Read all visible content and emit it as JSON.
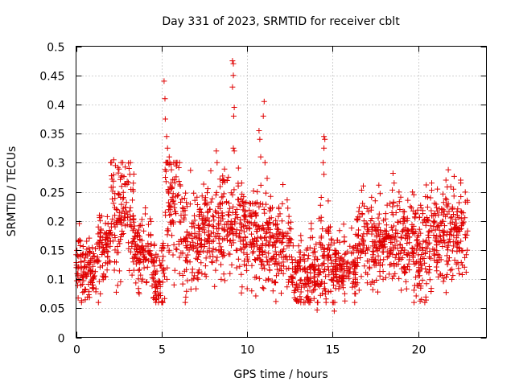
{
  "chart_data": {
    "type": "scatter",
    "title": "Day 331 of 2023, SRMTID for receiver cblt",
    "xlabel": "GPS time / hours",
    "ylabel": "SRMTID / TECUs",
    "xlim": [
      0,
      24
    ],
    "ylim": [
      0,
      0.5
    ],
    "xticks": [
      0,
      5,
      10,
      15,
      20
    ],
    "xtick_labels": [
      "0",
      "5",
      "10",
      "15",
      "20"
    ],
    "yticks": [
      0,
      0.05,
      0.1,
      0.15,
      0.2,
      0.25,
      0.3,
      0.35,
      0.4,
      0.45,
      0.5
    ],
    "ytick_labels": [
      "0",
      "0.05",
      "0.1",
      "0.15",
      "0.2",
      "0.25",
      "0.3",
      "0.35",
      "0.4",
      "0.45",
      "0.5"
    ],
    "grid": true,
    "marker": "+",
    "color": "#e00000",
    "series": [
      {
        "name": "cblt",
        "data_summary": "Dense per-satellite scatter from about 0 to 23 hours; most values between 0.05 and 0.3 TECU with spikes near 5.2 h, 9.2 h, 11 h and 14.6 h.",
        "segments": [
          {
            "x_range": [
              0.0,
              0.5
            ],
            "center": 0.12,
            "spread": 0.04
          },
          {
            "x_range": [
              0.5,
              1.2
            ],
            "center": 0.12,
            "spread": 0.04
          },
          {
            "x_range": [
              1.2,
              2.0
            ],
            "center": 0.15,
            "spread": 0.04
          },
          {
            "x_range": [
              2.0,
              2.6
            ],
            "center": 0.22,
            "spread": 0.08
          },
          {
            "x_range": [
              2.6,
              3.4
            ],
            "center": 0.22,
            "spread": 0.07
          },
          {
            "x_range": [
              3.4,
              4.4
            ],
            "center": 0.15,
            "spread": 0.04
          },
          {
            "x_range": [
              4.4,
              5.2
            ],
            "center": 0.11,
            "spread": 0.04
          },
          {
            "x_range": [
              5.2,
              6.2
            ],
            "center": 0.22,
            "spread": 0.09
          },
          {
            "x_range": [
              6.2,
              7.2
            ],
            "center": 0.16,
            "spread": 0.06
          },
          {
            "x_range": [
              7.2,
              8.2
            ],
            "center": 0.18,
            "spread": 0.05
          },
          {
            "x_range": [
              8.2,
              9.0
            ],
            "center": 0.2,
            "spread": 0.06
          },
          {
            "x_range": [
              9.0,
              10.0
            ],
            "center": 0.19,
            "spread": 0.06
          },
          {
            "x_range": [
              10.0,
              11.2
            ],
            "center": 0.17,
            "spread": 0.06
          },
          {
            "x_range": [
              11.2,
              12.6
            ],
            "center": 0.16,
            "spread": 0.05
          },
          {
            "x_range": [
              12.6,
              14.2
            ],
            "center": 0.11,
            "spread": 0.04
          },
          {
            "x_range": [
              14.2,
              15.0
            ],
            "center": 0.14,
            "spread": 0.06
          },
          {
            "x_range": [
              15.0,
              16.4
            ],
            "center": 0.12,
            "spread": 0.04
          },
          {
            "x_range": [
              16.4,
              18.0
            ],
            "center": 0.16,
            "spread": 0.05
          },
          {
            "x_range": [
              18.0,
              19.5
            ],
            "center": 0.17,
            "spread": 0.05
          },
          {
            "x_range": [
              19.5,
              21.0
            ],
            "center": 0.16,
            "spread": 0.06
          },
          {
            "x_range": [
              21.0,
              22.9
            ],
            "center": 0.18,
            "spread": 0.06
          }
        ],
        "spikes": [
          {
            "x": 2.2,
            "y": 0.305
          },
          {
            "x": 2.3,
            "y": 0.295
          },
          {
            "x": 3.1,
            "y": 0.29
          },
          {
            "x": 3.15,
            "y": 0.28
          },
          {
            "x": 5.15,
            "y": 0.44
          },
          {
            "x": 5.2,
            "y": 0.41
          },
          {
            "x": 5.22,
            "y": 0.375
          },
          {
            "x": 5.3,
            "y": 0.345
          },
          {
            "x": 5.35,
            "y": 0.325
          },
          {
            "x": 5.45,
            "y": 0.31
          },
          {
            "x": 8.2,
            "y": 0.32
          },
          {
            "x": 8.25,
            "y": 0.3
          },
          {
            "x": 9.15,
            "y": 0.475
          },
          {
            "x": 9.2,
            "y": 0.47
          },
          {
            "x": 9.2,
            "y": 0.45
          },
          {
            "x": 9.15,
            "y": 0.43
          },
          {
            "x": 9.25,
            "y": 0.395
          },
          {
            "x": 9.22,
            "y": 0.38
          },
          {
            "x": 9.2,
            "y": 0.325
          },
          {
            "x": 9.25,
            "y": 0.32
          },
          {
            "x": 10.7,
            "y": 0.355
          },
          {
            "x": 10.75,
            "y": 0.34
          },
          {
            "x": 10.8,
            "y": 0.31
          },
          {
            "x": 11.0,
            "y": 0.405
          },
          {
            "x": 10.95,
            "y": 0.38
          },
          {
            "x": 11.05,
            "y": 0.3
          },
          {
            "x": 14.5,
            "y": 0.345
          },
          {
            "x": 14.55,
            "y": 0.34
          },
          {
            "x": 14.5,
            "y": 0.325
          },
          {
            "x": 14.45,
            "y": 0.3
          },
          {
            "x": 14.5,
            "y": 0.28
          },
          {
            "x": 16.8,
            "y": 0.26
          },
          {
            "x": 18.6,
            "y": 0.265
          },
          {
            "x": 20.8,
            "y": 0.265
          },
          {
            "x": 22.5,
            "y": 0.27
          }
        ],
        "lows": [
          {
            "x": 14.1,
            "y": 0.047
          },
          {
            "x": 15.1,
            "y": 0.045
          },
          {
            "x": 13.6,
            "y": 0.065
          },
          {
            "x": 4.7,
            "y": 0.065
          },
          {
            "x": 20.2,
            "y": 0.065
          },
          {
            "x": 15.05,
            "y": 0.06
          }
        ]
      }
    ]
  }
}
